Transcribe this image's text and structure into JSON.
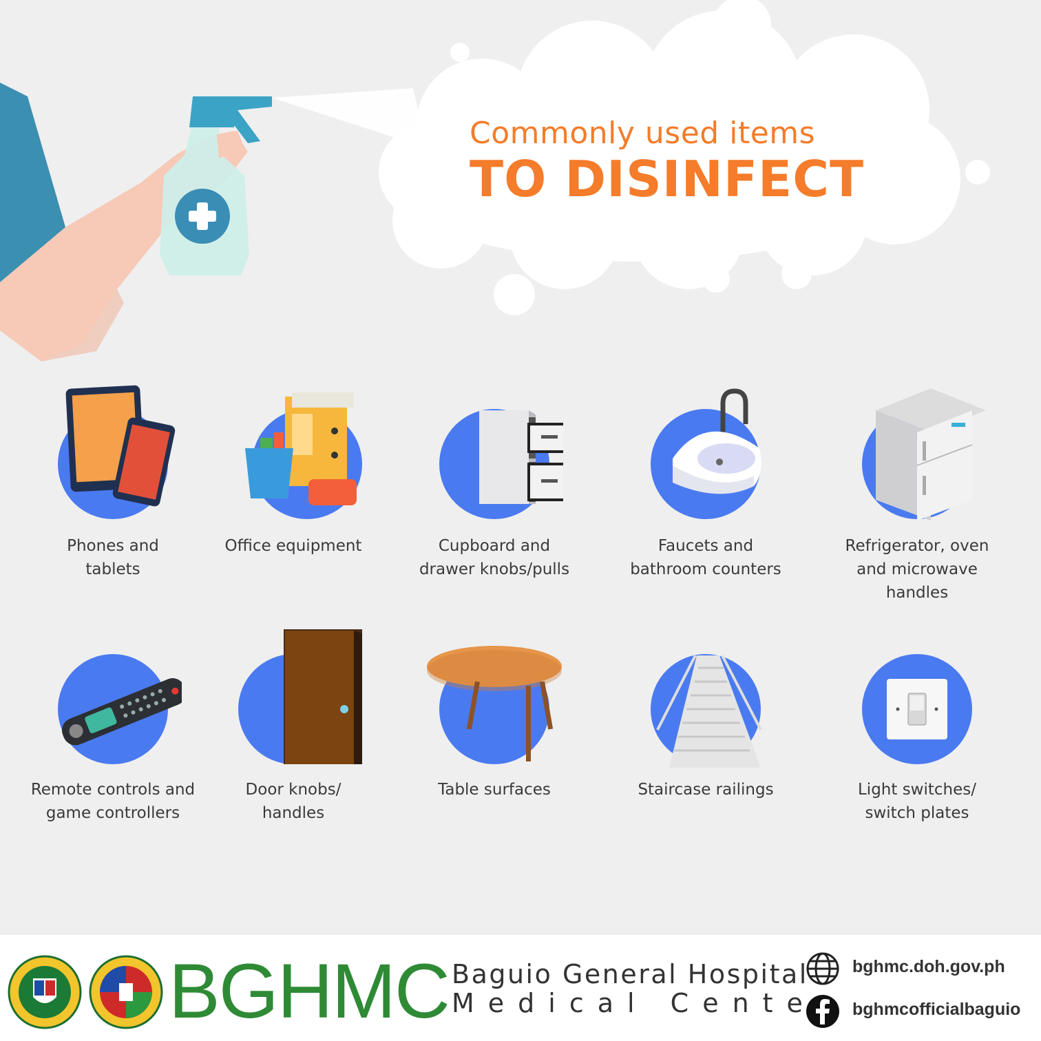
{
  "heading": {
    "subtitle": "Commonly used items",
    "title": "TO DISINFECT"
  },
  "items": [
    {
      "label": "Phones and\ntablets",
      "icon": "phone-tablet-icon"
    },
    {
      "label": "Office equipment",
      "icon": "office-supplies-icon"
    },
    {
      "label": "Cupboard and\ndrawer knobs/pulls",
      "icon": "cupboard-icon"
    },
    {
      "label": "Faucets and\nbathroom counters",
      "icon": "sink-icon"
    },
    {
      "label": "Refrigerator, oven\nand microwave\nhandles",
      "icon": "refrigerator-icon"
    },
    {
      "label": "Remote controls and\ngame controllers",
      "icon": "remote-control-icon"
    },
    {
      "label": "Door knobs/\nhandles",
      "icon": "door-icon"
    },
    {
      "label": "Table surfaces",
      "icon": "table-icon"
    },
    {
      "label": "Staircase railings",
      "icon": "staircase-icon"
    },
    {
      "label": "Light switches/\nswitch plates",
      "icon": "light-switch-icon"
    }
  ],
  "footer": {
    "brand": "BGHMC",
    "org_line1": "Baguio General Hospital",
    "org_line2": "Medical Center",
    "website": "bghmc.doh.gov.ph",
    "facebook": "bghmcofficialbaguio"
  },
  "colors": {
    "accent_orange": "#f47c2a",
    "circle_blue": "#4a7af0",
    "brand_green": "#2f8a36",
    "background": "#efefef"
  }
}
